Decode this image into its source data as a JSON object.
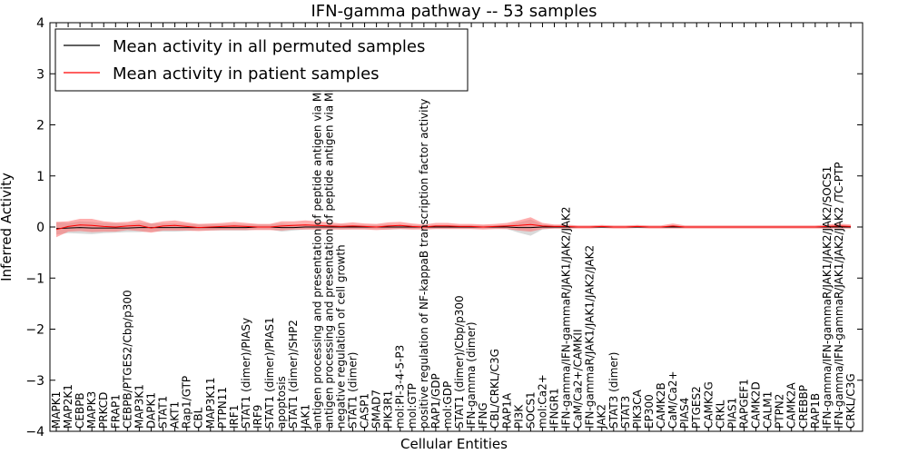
{
  "chart_data": {
    "type": "line",
    "title": "IFN-gamma pathway -- 53 samples",
    "xlabel": "Cellular Entities",
    "ylabel": "Inferred Activity",
    "ylim": [
      -4,
      4
    ],
    "yticks": [
      -4,
      -3,
      -2,
      -1,
      0,
      1,
      2,
      3,
      4
    ],
    "grid": false,
    "legend_position": "upper-left",
    "categories": [
      "MAPK1",
      "MAP2K1",
      "CEBPB",
      "MAPK3",
      "PRKCD",
      "FRAP1",
      "CEBPB/PTGES2/Cbp/p300",
      "MAP3K1",
      "DAPK1",
      "STAT1",
      "AKT1",
      "Rap1/GTP",
      "CBL",
      "MAP3K11",
      "PTPN11",
      "IRF1",
      "STAT1 (dimer)/PIASy",
      "IRF9",
      "STAT1 (dimer)/PIAS1",
      "apoptosis",
      "STAT1 (dimer)/SHP2",
      "JAK1",
      "antigen processing and presentation of peptide antigen via MHC class I",
      "antigen processing and presentation of peptide antigen via MHC class II",
      "negative regulation of cell growth",
      "STAT1 (dimer)",
      "CASP1",
      "SMAD7",
      "PIK3R1",
      "mol:PI-3-4-5-P3",
      "mol:GTP",
      "positive regulation of NF-kappaB transcription factor activity",
      "RAP1/GDP",
      "mol:GDP",
      "STAT1 (dimer)/Cbp/p300",
      "IFN-gamma (dimer)",
      "IFNG",
      "CBL/CRKL/C3G",
      "RAP1A",
      "PI3K",
      "SOCS1",
      "mol:Ca2+",
      "IFNGR1",
      "IFN-gamma/IFN-gammaR/JAK1/JAK2/JAK2",
      "CaM/Ca2+/CAMKII",
      "IFN-gammaR/JAK1/JAK1/JAK2/JAK2",
      "JAK2",
      "STAT3 (dimer)",
      "STAT3",
      "PIK3CA",
      "EP300",
      "CAMK2B",
      "CaM/Ca2+",
      "PIAS4",
      "PTGES2",
      "CAMK2G",
      "CRKL",
      "PIAS1",
      "RAPGEF1",
      "CAMK2D",
      "CALM1",
      "PTPN2",
      "CAMK2A",
      "CREBBP",
      "RAP1B",
      "IFN-gamma/IFN-gammaR/JAK1/JAK2/JAK2/SOCS1",
      "IFN-gamma/IFN-gammaR/JAK1/JAK2/JAK2 /TC-PTP",
      "CRKL/C3G"
    ],
    "series": [
      {
        "name": "Mean activity in all permuted samples",
        "color": "#000000",
        "values": [
          -0.03,
          -0.02,
          -0.01,
          -0.02,
          -0.02,
          -0.02,
          -0.02,
          -0.01,
          -0.01,
          -0.01,
          -0.01,
          -0.01,
          -0.01,
          -0.01,
          -0.01,
          -0.01,
          -0.01,
          0.0,
          0.0,
          -0.01,
          -0.01,
          0.0,
          0.0,
          0.0,
          0.0,
          0.0,
          0.0,
          0.0,
          0.0,
          0.0,
          0.0,
          0.0,
          0.0,
          0.0,
          0.0,
          0.0,
          0.0,
          0.0,
          0.0,
          -0.01,
          -0.01,
          0.0,
          0.0,
          0.0,
          0.0,
          0.0,
          0.0,
          0.0,
          0.0,
          0.0,
          0.0,
          0.0,
          0.0,
          0.0,
          0.0,
          0.0,
          0.0,
          0.0,
          0.0,
          0.0,
          0.0,
          0.0,
          0.0,
          0.0,
          0.0,
          0.0,
          0.0,
          0.0
        ],
        "band": [
          0.12,
          0.1,
          0.12,
          0.12,
          0.1,
          0.09,
          0.08,
          0.09,
          0.08,
          0.08,
          0.08,
          0.07,
          0.06,
          0.06,
          0.06,
          0.06,
          0.06,
          0.05,
          0.05,
          0.08,
          0.06,
          0.05,
          0.04,
          0.04,
          0.05,
          0.04,
          0.04,
          0.04,
          0.05,
          0.04,
          0.04,
          0.03,
          0.03,
          0.03,
          0.03,
          0.03,
          0.03,
          0.03,
          0.04,
          0.1,
          0.16,
          0.05,
          0.03,
          0.03,
          0.02,
          0.02,
          0.02,
          0.02,
          0.02,
          0.02,
          0.02,
          0.02,
          0.02,
          0.02,
          0.02,
          0.02,
          0.02,
          0.02,
          0.02,
          0.02,
          0.02,
          0.02,
          0.02,
          0.02,
          0.02,
          0.02,
          0.02,
          0.02
        ]
      },
      {
        "name": "Mean activity in patient samples",
        "color": "#ff0000",
        "values": [
          -0.05,
          0.01,
          0.04,
          0.03,
          0.01,
          0.0,
          0.02,
          0.03,
          -0.02,
          0.02,
          0.03,
          0.01,
          -0.01,
          0.0,
          0.01,
          0.02,
          0.01,
          0.0,
          0.0,
          0.02,
          0.03,
          0.04,
          0.03,
          0.02,
          0.01,
          0.02,
          0.01,
          0.0,
          0.02,
          0.03,
          0.01,
          0.0,
          0.02,
          0.02,
          0.01,
          0.01,
          0.0,
          0.01,
          0.02,
          0.03,
          0.05,
          0.02,
          0.01,
          0.01,
          0.0,
          0.0,
          0.01,
          0.0,
          0.0,
          0.01,
          0.0,
          0.0,
          0.02,
          0.0,
          0.0,
          0.0,
          0.0,
          0.0,
          0.0,
          0.0,
          0.0,
          0.0,
          0.0,
          0.0,
          0.0,
          0.01,
          0.02,
          0.01
        ],
        "band": [
          0.15,
          0.1,
          0.12,
          0.13,
          0.1,
          0.09,
          0.08,
          0.11,
          0.09,
          0.09,
          0.1,
          0.08,
          0.07,
          0.07,
          0.07,
          0.08,
          0.07,
          0.06,
          0.06,
          0.09,
          0.08,
          0.09,
          0.08,
          0.07,
          0.06,
          0.07,
          0.06,
          0.06,
          0.07,
          0.07,
          0.06,
          0.05,
          0.06,
          0.06,
          0.05,
          0.05,
          0.05,
          0.05,
          0.06,
          0.1,
          0.14,
          0.06,
          0.04,
          0.04,
          0.03,
          0.03,
          0.03,
          0.03,
          0.03,
          0.03,
          0.03,
          0.03,
          0.05,
          0.03,
          0.03,
          0.03,
          0.03,
          0.03,
          0.03,
          0.03,
          0.03,
          0.03,
          0.03,
          0.03,
          0.03,
          0.04,
          0.05,
          0.04
        ]
      }
    ]
  }
}
